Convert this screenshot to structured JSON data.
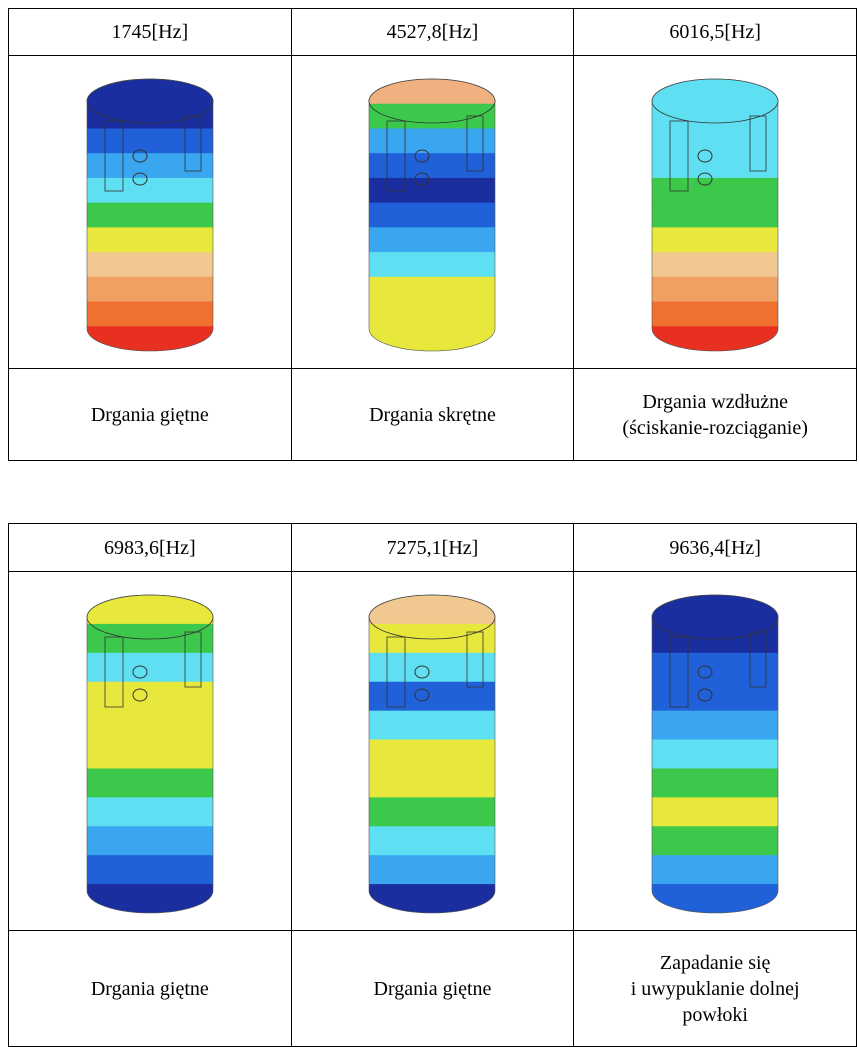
{
  "tables": [
    {
      "frequencies": [
        "1745[Hz]",
        "4527,8[Hz]",
        "6016,5[Hz]"
      ],
      "descriptions": [
        [
          "Drgania giętne"
        ],
        [
          "Drgania skrętne"
        ],
        [
          "Drgania wzdłużne",
          "(ściskanie-rozciąganie)"
        ]
      ]
    },
    {
      "frequencies": [
        "6983,6[Hz]",
        "7275,1[Hz]",
        "9636,4[Hz]"
      ],
      "descriptions": [
        [
          "Drgania giętne"
        ],
        [
          "Drgania giętne"
        ],
        [
          "Zapadanie się",
          "i uwypuklanie dolnej",
          "powłoki"
        ]
      ]
    }
  ]
}
